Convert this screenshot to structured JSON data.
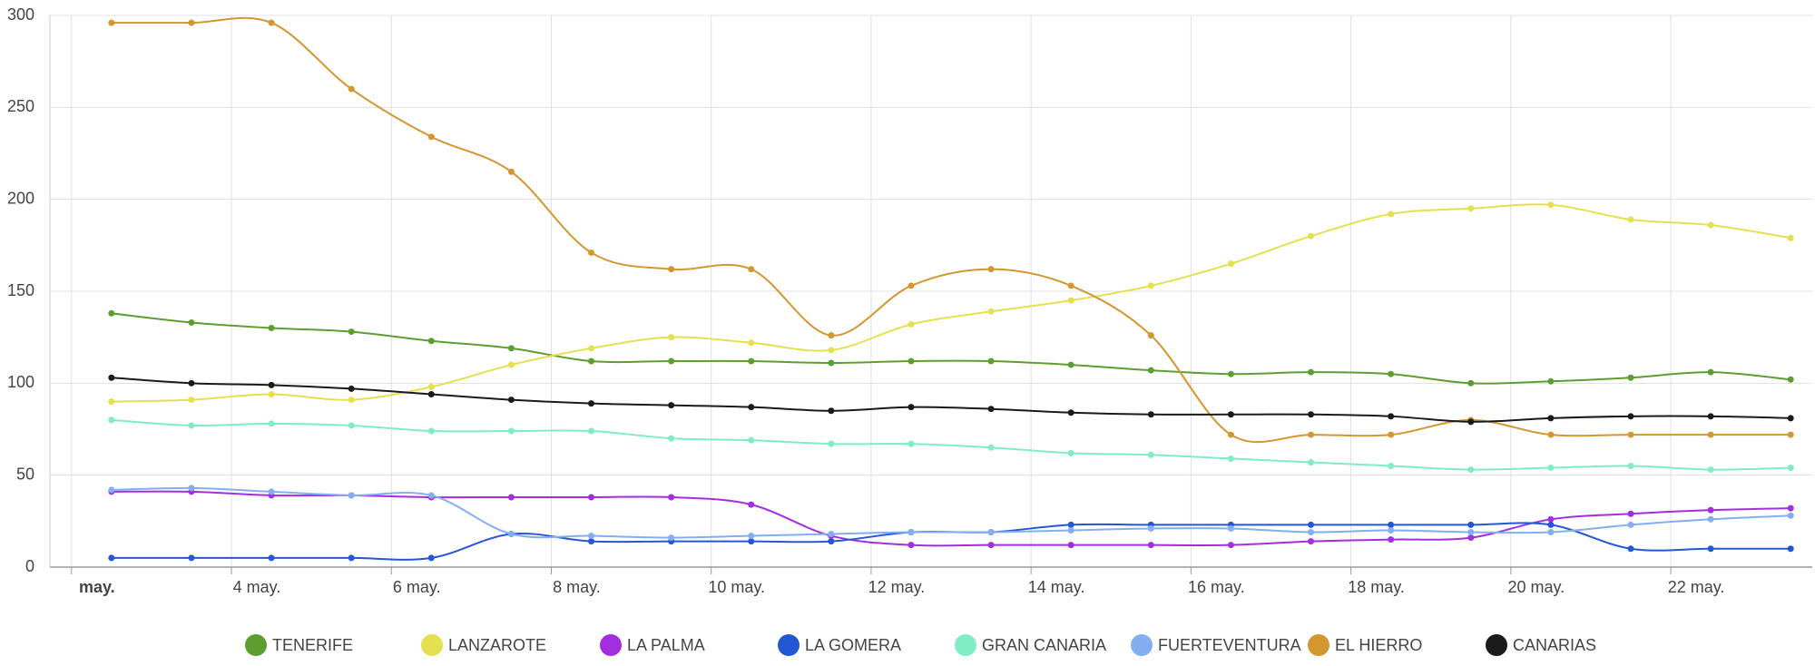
{
  "chart_data": {
    "type": "line",
    "x": [
      2.5,
      3.5,
      4.5,
      5.5,
      6.5,
      7.5,
      8.5,
      9.5,
      10.5,
      11.5,
      12.5,
      13.5,
      14.5,
      15.5,
      16.5,
      17.5,
      18.5,
      19.5,
      20.5,
      21.5,
      22.5,
      23.5
    ],
    "xlim": [
      1.73,
      23.77
    ],
    "xticks": [
      {
        "value": 2,
        "label": "may."
      },
      {
        "value": 4,
        "label": "4 may."
      },
      {
        "value": 6,
        "label": "6 may."
      },
      {
        "value": 8,
        "label": "8 may."
      },
      {
        "value": 10,
        "label": "10 may."
      },
      {
        "value": 12,
        "label": "12 may."
      },
      {
        "value": 14,
        "label": "14 may."
      },
      {
        "value": 16,
        "label": "16 may."
      },
      {
        "value": 18,
        "label": "18 may."
      },
      {
        "value": 20,
        "label": "20 may."
      },
      {
        "value": 22,
        "label": "22 may."
      }
    ],
    "ylim": [
      0,
      300
    ],
    "yticks": [
      0,
      50,
      100,
      150,
      200,
      250,
      300
    ],
    "grid": true,
    "legend": "bottom",
    "series": [
      {
        "name": "TENERIFE",
        "color": "#5c9e31",
        "values": [
          138,
          133,
          130,
          128,
          123,
          119,
          112,
          112,
          112,
          111,
          112,
          112,
          110,
          107,
          105,
          106,
          105,
          100,
          101,
          103,
          106,
          102
        ]
      },
      {
        "name": "LANZAROTE",
        "color": "#e4e04f",
        "values": [
          90,
          91,
          94,
          91,
          98,
          110,
          119,
          125,
          122,
          118,
          132,
          139,
          145,
          153,
          165,
          180,
          192,
          195,
          197,
          189,
          186,
          179
        ]
      },
      {
        "name": "LA PALMA",
        "color": "#a32ee0",
        "values": [
          41,
          41,
          39,
          39,
          38,
          38,
          38,
          38,
          34,
          17,
          12,
          12,
          12,
          12,
          12,
          14,
          15,
          16,
          26,
          29,
          31,
          32
        ]
      },
      {
        "name": "LA GOMERA",
        "color": "#2457d6",
        "values": [
          5,
          5,
          5,
          5,
          5,
          18,
          14,
          14,
          14,
          14,
          19,
          19,
          23,
          23,
          23,
          23,
          23,
          23,
          23,
          10,
          10,
          10
        ]
      },
      {
        "name": "GRAN CANARIA",
        "color": "#7fecc6",
        "values": [
          80,
          77,
          78,
          77,
          74,
          74,
          74,
          70,
          69,
          67,
          67,
          65,
          62,
          61,
          59,
          57,
          55,
          53,
          54,
          55,
          53,
          54
        ]
      },
      {
        "name": "FUERTEVENTURA",
        "color": "#84aef0",
        "values": [
          42,
          43,
          41,
          39,
          39,
          18,
          17,
          16,
          17,
          18,
          19,
          19,
          20,
          21,
          21,
          19,
          20,
          19,
          19,
          23,
          26,
          28
        ]
      },
      {
        "name": "EL HIERRO",
        "color": "#d4962f",
        "values": [
          296,
          296,
          296,
          260,
          234,
          215,
          171,
          162,
          162,
          126,
          153,
          162,
          153,
          126,
          72,
          72,
          72,
          80,
          72,
          72,
          72,
          72
        ]
      },
      {
        "name": "CANARIAS",
        "color": "#1a1a1a",
        "values": [
          103,
          100,
          99,
          97,
          94,
          91,
          89,
          88,
          87,
          85,
          87,
          86,
          84,
          83,
          83,
          83,
          82,
          79,
          81,
          82,
          82,
          81
        ]
      }
    ]
  }
}
